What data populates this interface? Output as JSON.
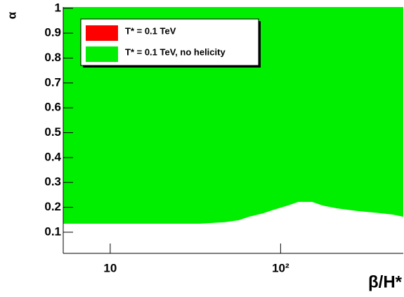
{
  "chart_data": {
    "type": "area",
    "xlabel": "β/H*",
    "ylabel": "α",
    "xlog": true,
    "xlim": [
      5.3,
      525
    ],
    "ylim": [
      0.015,
      1.005
    ],
    "xticks": [
      10,
      {
        "value": 100,
        "label": "10²"
      }
    ],
    "yticks": [
      0.1,
      0.2,
      0.3,
      0.4,
      0.5,
      0.6,
      0.7,
      0.8,
      0.9,
      1
    ],
    "legend_items": [
      {
        "name": "T* = 0.1 TeV",
        "color": "#ff0000"
      },
      {
        "name": "T* = 0.1 TeV, no helicity",
        "color": "#00ee00"
      }
    ],
    "legend": "upper left",
    "series": [
      {
        "name": "T* = 0.1 TeV, no helicity",
        "color": "#00ee00",
        "x": [
          5.3,
          33.6,
          46.9,
          56.6,
          65.3,
          78.9,
          91,
          110,
          127,
          153,
          177,
          213,
          284,
          377,
          455,
          525
        ],
        "values": [
          0.134,
          0.134,
          0.14,
          0.148,
          0.162,
          0.176,
          0.19,
          0.207,
          0.222,
          0.222,
          0.207,
          0.196,
          0.185,
          0.177,
          0.171,
          0.162
        ]
      }
    ]
  }
}
